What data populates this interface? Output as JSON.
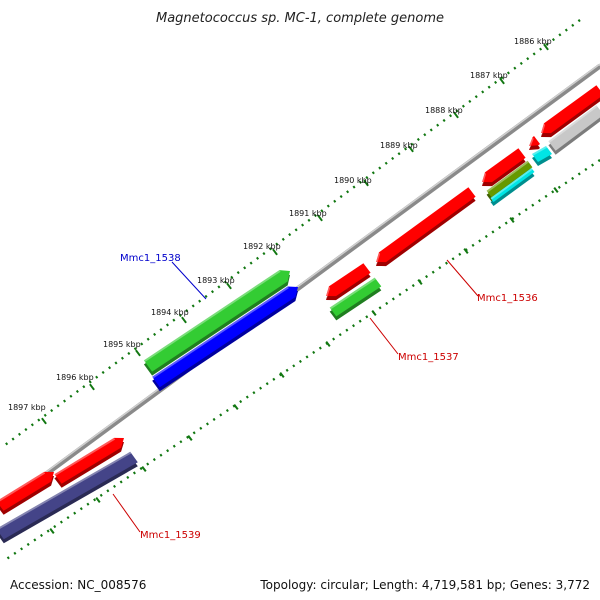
{
  "title": "Magnetococcus sp. MC-1, complete genome",
  "footer": {
    "accession": "Accession: NC_008576",
    "topology": "Topology: circular; Length: 4,719,581 bp; Genes: 3,772"
  },
  "scale": {
    "tick_labels": [
      "1886 kbp",
      "1887 kbp",
      "1888 kbp",
      "1889 kbp",
      "1890 kbp",
      "1891 kbp",
      "1892 kbp",
      "1893 kbp",
      "1894 kbp",
      "1895 kbp",
      "1896 kbp",
      "1897 kbp"
    ]
  },
  "gene_labels": [
    {
      "text": "Mmc1_1538",
      "color": "#0000cc"
    },
    {
      "text": "Mmc1_1536",
      "color": "#cc0000"
    },
    {
      "text": "Mmc1_1537",
      "color": "#cc0000"
    },
    {
      "text": "Mmc1_1539",
      "color": "#cc0000"
    }
  ],
  "colors": {
    "red": "#ff0000",
    "green": "#33cc33",
    "blue": "#0000ff",
    "navy": "#444488",
    "cyan": "#00e5e5",
    "olive": "#669900",
    "gray": "#c8c8c8",
    "backbone": "#7a7a7a",
    "tick": "#117711"
  }
}
